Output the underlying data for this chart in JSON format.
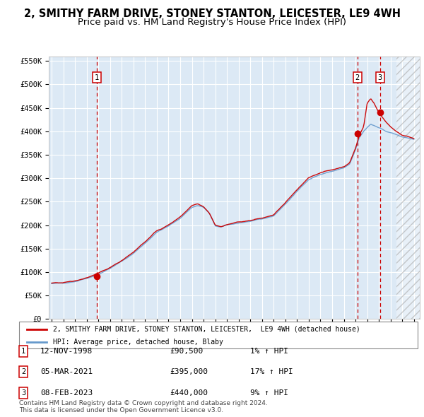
{
  "title1": "2, SMITHY FARM DRIVE, STONEY STANTON, LEICESTER, LE9 4WH",
  "title2": "Price paid vs. HM Land Registry's House Price Index (HPI)",
  "ylim": [
    0,
    560000
  ],
  "yticks": [
    0,
    50000,
    100000,
    150000,
    200000,
    250000,
    300000,
    350000,
    400000,
    450000,
    500000,
    550000
  ],
  "ytick_labels": [
    "£0",
    "£50K",
    "£100K",
    "£150K",
    "£200K",
    "£250K",
    "£300K",
    "£350K",
    "£400K",
    "£450K",
    "£500K",
    "£550K"
  ],
  "xlim_start": 1994.75,
  "xlim_end": 2026.5,
  "hpi_color": "#6699cc",
  "price_color": "#cc0000",
  "bg_color": "#dce9f5",
  "grid_color": "#ffffff",
  "vline_color": "#cc0000",
  "sale_points": [
    {
      "year": 1998.87,
      "price": 90500,
      "label": "1"
    },
    {
      "year": 2021.17,
      "price": 395000,
      "label": "2"
    },
    {
      "year": 2023.1,
      "price": 440000,
      "label": "3"
    }
  ],
  "hatch_start": 2024.5,
  "legend_line1": "2, SMITHY FARM DRIVE, STONEY STANTON, LEICESTER,  LE9 4WH (detached house)",
  "legend_line2": "HPI: Average price, detached house, Blaby",
  "table_rows": [
    {
      "num": "1",
      "date": "12-NOV-1998",
      "price": "£90,500",
      "change": "1% ↑ HPI"
    },
    {
      "num": "2",
      "date": "05-MAR-2021",
      "price": "£395,000",
      "change": "17% ↑ HPI"
    },
    {
      "num": "3",
      "date": "08-FEB-2023",
      "price": "£440,000",
      "change": "9% ↑ HPI"
    }
  ],
  "footnote1": "Contains HM Land Registry data © Crown copyright and database right 2024.",
  "footnote2": "This data is licensed under the Open Government Licence v3.0.",
  "key_years_hpi": [
    1995,
    1996,
    1997,
    1998,
    1999,
    2000,
    2001,
    2002,
    2003,
    2004,
    2005,
    2006,
    2007,
    2007.5,
    2008,
    2008.5,
    2009,
    2009.5,
    2010,
    2011,
    2012,
    2013,
    2014,
    2015,
    2016,
    2017,
    2018,
    2019,
    2020,
    2020.5,
    2021,
    2021.3,
    2021.7,
    2022,
    2022.3,
    2022.6,
    2023,
    2023.3,
    2023.6,
    2024,
    2024.5,
    2025,
    2026
  ],
  "key_vals_hpi": [
    75000,
    77000,
    80000,
    87000,
    95000,
    108000,
    123000,
    140000,
    162000,
    185000,
    198000,
    215000,
    238000,
    242000,
    238000,
    225000,
    198000,
    196000,
    200000,
    205000,
    208000,
    213000,
    220000,
    245000,
    272000,
    298000,
    308000,
    315000,
    322000,
    330000,
    360000,
    385000,
    400000,
    408000,
    415000,
    412000,
    408000,
    405000,
    400000,
    398000,
    393000,
    388000,
    383000
  ],
  "key_years_price": [
    1995,
    1996,
    1997,
    1998,
    1999,
    2000,
    2001,
    2002,
    2003,
    2004,
    2005,
    2006,
    2007,
    2007.5,
    2008,
    2008.5,
    2009,
    2009.5,
    2010,
    2011,
    2012,
    2013,
    2014,
    2015,
    2016,
    2017,
    2018,
    2019,
    2020,
    2020.5,
    2021,
    2021.3,
    2021.7,
    2022,
    2022.3,
    2022.6,
    2023,
    2023.3,
    2023.6,
    2024,
    2024.5,
    2025,
    2026
  ],
  "key_vals_price": [
    76000,
    78000,
    81000,
    88000,
    97000,
    110000,
    125000,
    143000,
    165000,
    188000,
    200000,
    218000,
    242000,
    246000,
    240000,
    226000,
    200000,
    197000,
    201000,
    207000,
    210000,
    215000,
    222000,
    248000,
    275000,
    302000,
    312000,
    318000,
    325000,
    333000,
    364000,
    390000,
    410000,
    460000,
    470000,
    460000,
    440000,
    430000,
    420000,
    410000,
    400000,
    392000,
    385000
  ]
}
